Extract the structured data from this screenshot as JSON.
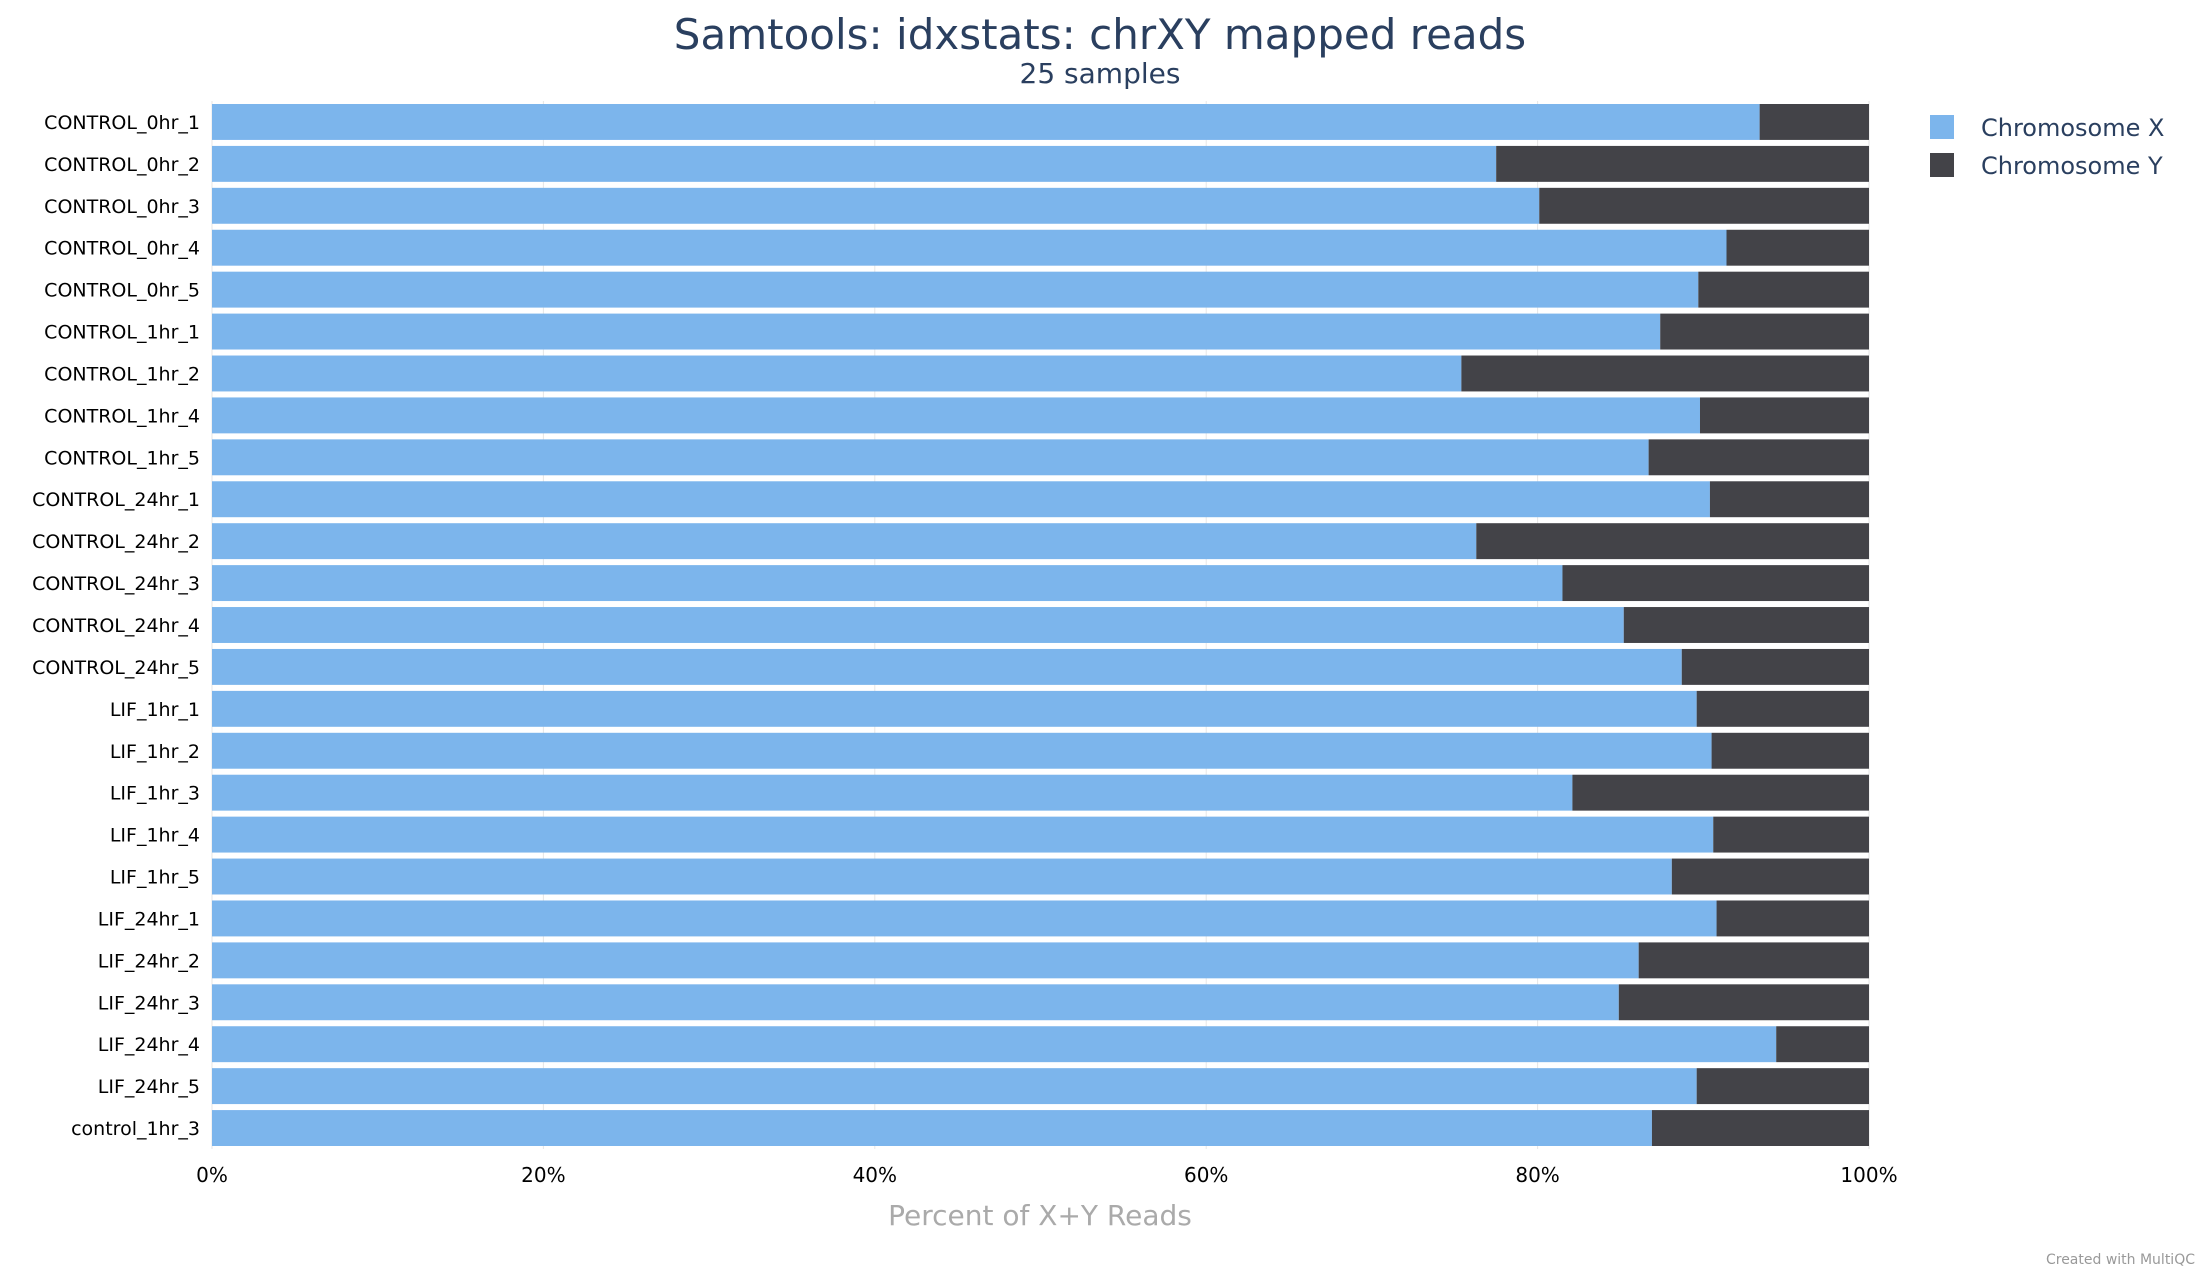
{
  "chart_data": {
    "type": "bar",
    "orientation": "horizontal",
    "stacked": true,
    "percent": true,
    "title": "Samtools: idxstats: chrXY mapped reads",
    "subtitle": "25 samples",
    "xlabel": "Percent of X+Y Reads",
    "ylabel": "",
    "xlim": [
      0,
      100
    ],
    "x_ticks": [
      "0%",
      "20%",
      "40%",
      "60%",
      "80%",
      "100%"
    ],
    "x_tick_values": [
      0,
      20,
      40,
      60,
      80,
      100
    ],
    "grid": true,
    "legend_position": "right",
    "categories": [
      "CONTROL_0hr_1",
      "CONTROL_0hr_2",
      "CONTROL_0hr_3",
      "CONTROL_0hr_4",
      "CONTROL_0hr_5",
      "CONTROL_1hr_1",
      "CONTROL_1hr_2",
      "CONTROL_1hr_4",
      "CONTROL_1hr_5",
      "CONTROL_24hr_1",
      "CONTROL_24hr_2",
      "CONTROL_24hr_3",
      "CONTROL_24hr_4",
      "CONTROL_24hr_5",
      "LIF_1hr_1",
      "LIF_1hr_2",
      "LIF_1hr_3",
      "LIF_1hr_4",
      "LIF_1hr_5",
      "LIF_24hr_1",
      "LIF_24hr_2",
      "LIF_24hr_3",
      "LIF_24hr_4",
      "LIF_24hr_5",
      "control_1hr_3"
    ],
    "series": [
      {
        "name": "Chromosome X",
        "color": "#7cb5ec",
        "values": [
          93.4,
          77.5,
          80.1,
          91.4,
          89.7,
          87.4,
          75.4,
          89.8,
          86.7,
          90.4,
          76.3,
          81.5,
          85.2,
          88.7,
          89.6,
          90.5,
          82.1,
          90.6,
          88.1,
          90.8,
          86.1,
          84.9,
          94.4,
          89.6,
          86.9
        ]
      },
      {
        "name": "Chromosome Y",
        "color": "#434348",
        "values": [
          6.6,
          22.5,
          19.9,
          8.6,
          10.3,
          12.6,
          24.6,
          10.2,
          13.3,
          9.6,
          23.7,
          18.5,
          14.8,
          11.3,
          10.4,
          9.5,
          17.9,
          9.4,
          11.9,
          9.2,
          13.9,
          15.1,
          5.6,
          10.4,
          13.1
        ]
      }
    ]
  },
  "credit": "Created with MultiQC"
}
